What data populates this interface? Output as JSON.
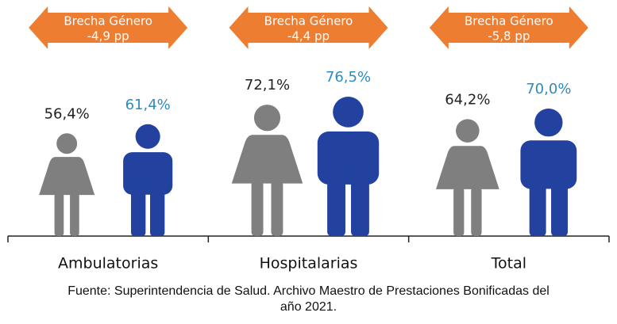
{
  "chart_data": {
    "type": "pictograph",
    "categories": [
      "Ambulatorias",
      "Hospitalarias",
      "Total"
    ],
    "series": [
      {
        "icon": "female",
        "color": "#7f7f7f",
        "label_color": "#222222",
        "values": [
          56.4,
          72.1,
          64.2
        ],
        "value_labels": [
          "56,4%",
          "72,1%",
          "64,2%"
        ]
      },
      {
        "icon": "male",
        "color": "#2342a0",
        "label_color": "#2e8bc0",
        "values": [
          61.4,
          76.5,
          70.0
        ],
        "value_labels": [
          "61,4%",
          "76,5%",
          "70,0%"
        ]
      }
    ],
    "gap_title": "Brecha Género",
    "gaps": {
      "color": "#ed7d31",
      "values": [
        -4.9,
        -4.4,
        -5.8
      ],
      "value_labels": [
        "-4,9 pp",
        "-4,4 pp",
        "-5,8 pp"
      ]
    },
    "source": "Fuente: Superintendencia de Salud. Archivo Maestro de Prestaciones Bonificadas del año 2021."
  }
}
